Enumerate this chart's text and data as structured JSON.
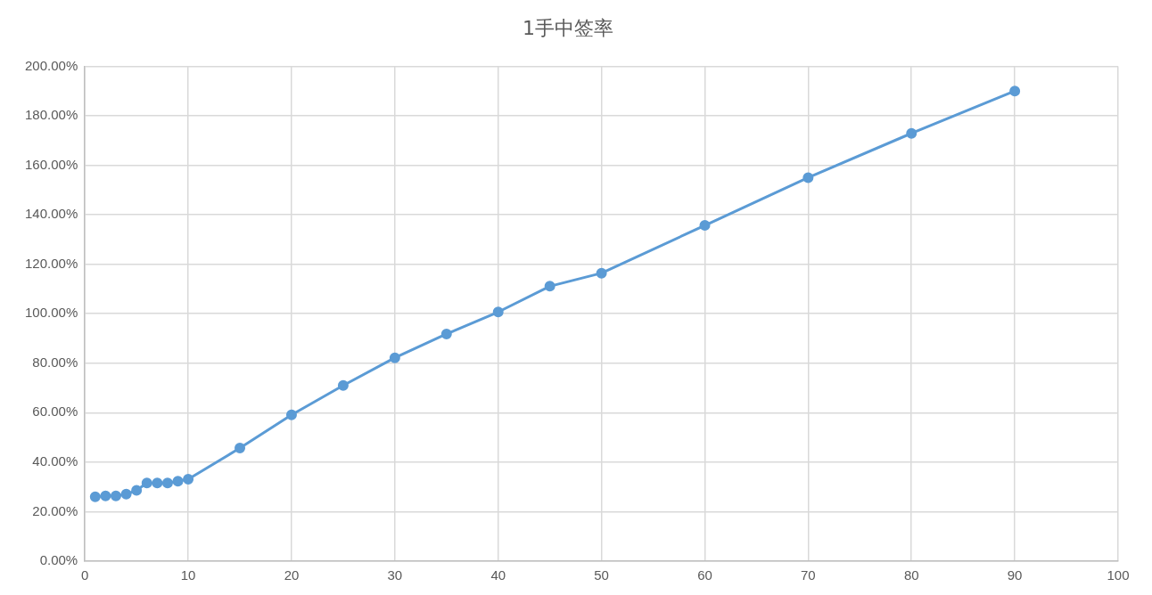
{
  "chart_data": {
    "type": "line",
    "title": "1手中签率",
    "x": [
      1,
      2,
      3,
      4,
      5,
      6,
      7,
      8,
      9,
      10,
      15,
      20,
      25,
      30,
      35,
      40,
      45,
      50,
      60,
      70,
      80,
      90
    ],
    "series": [
      {
        "color": "#5b9bd5",
        "values": [
          26,
          26.4,
          26.4,
          27.1,
          28.6,
          31.6,
          31.6,
          31.6,
          32.3,
          33.1,
          45.7,
          59.1,
          71,
          82.2,
          91.8,
          100.7,
          111.1,
          116.4,
          135.7,
          155,
          172.9,
          190
        ]
      }
    ],
    "xlim": [
      0,
      100
    ],
    "xticks": [
      0,
      10,
      20,
      30,
      40,
      50,
      60,
      70,
      80,
      90,
      100
    ],
    "ylim": [
      0,
      200
    ],
    "yticks": [
      {
        "value": 0,
        "label": "0.00%"
      },
      {
        "value": 20,
        "label": "20.00%"
      },
      {
        "value": 40,
        "label": "40.00%"
      },
      {
        "value": 60,
        "label": "60.00%"
      },
      {
        "value": 80,
        "label": "80.00%"
      },
      {
        "value": 100,
        "label": "100.00%"
      },
      {
        "value": 120,
        "label": "120.00%"
      },
      {
        "value": 140,
        "label": "140.00%"
      },
      {
        "value": 160,
        "label": "160.00%"
      },
      {
        "value": 180,
        "label": "180.00%"
      },
      {
        "value": 200,
        "label": "200.00%"
      }
    ],
    "grid": true,
    "marker": "circle",
    "line_style": "solid"
  }
}
